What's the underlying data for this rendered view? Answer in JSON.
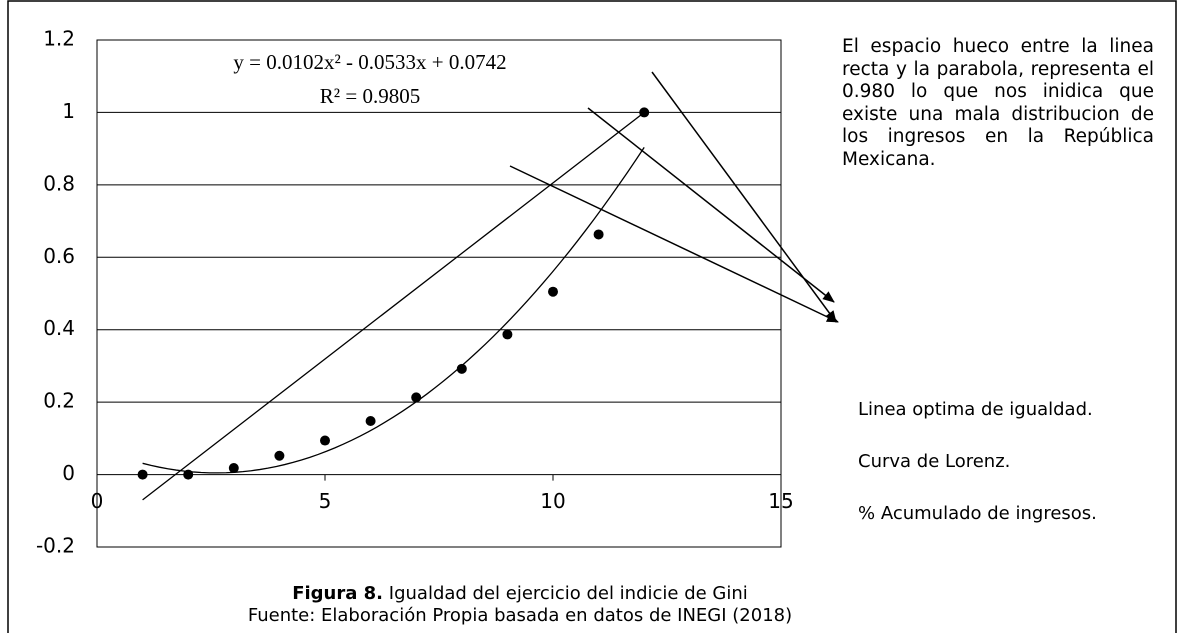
{
  "chart_data": {
    "type": "scatter",
    "x": [
      1,
      2,
      3,
      4,
      5,
      6,
      7,
      8,
      9,
      10,
      11,
      12
    ],
    "values": [
      0,
      0,
      0.018,
      0.052,
      0.094,
      0.148,
      0.213,
      0.292,
      0.387,
      0.505,
      0.663,
      1.0
    ],
    "color": "#000000",
    "xlim": [
      0,
      15
    ],
    "xticks": [
      0,
      5,
      10,
      15
    ],
    "ylim": [
      -0.2,
      1.2
    ],
    "yticks": [
      -0.2,
      0,
      0.2,
      0.4,
      0.6,
      0.8,
      1,
      1.2
    ],
    "grid": true,
    "trendline": {
      "equation": "y = 0.0102x² - 0.0533x + 0.0742",
      "r_squared": "R² = 0.9805",
      "coefficients": [
        0.0102,
        -0.0533,
        0.0742
      ],
      "xlim": [
        1,
        12
      ]
    },
    "equality_line": {
      "x": [
        1,
        12
      ],
      "values": [
        -0.07,
        1.0
      ]
    },
    "annotation": "El espacio hueco entre la linea recta y la parabola, representa el 0.980 lo que nos inidica que existe una mala distribucion de los ingresos en la República Mexicana.",
    "labels": [
      "Linea optima de igualdad.",
      "Curva de Lorenz.",
      "% Acumulado de ingresos."
    ],
    "caption_bold": "Figura 8.",
    "caption": "Igualdad del ejercicio del indicie de Gini",
    "source": "Fuente: Elaboración Propia basada en datos de INEGI (2018)"
  }
}
